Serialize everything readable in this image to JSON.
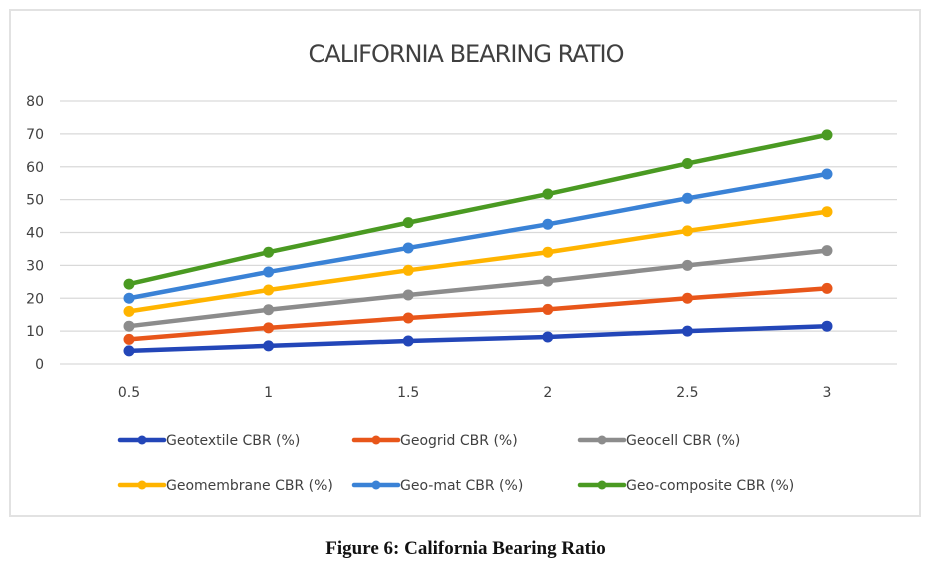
{
  "figure_caption": "Figure 6: California Bearing Ratio",
  "chart_data": {
    "type": "line",
    "title": "CALIFORNIA BEARING RATIO",
    "xlabel": "",
    "ylabel": "",
    "x": [
      0.5,
      1,
      1.5,
      2,
      2.5,
      3
    ],
    "x_tick_labels": [
      "0.5",
      "1",
      "1.5",
      "2",
      "2.5",
      "3"
    ],
    "ylim": [
      0,
      80
    ],
    "y_ticks": [
      0,
      10,
      20,
      30,
      40,
      50,
      60,
      70,
      80
    ],
    "grid": true,
    "legend_position": "bottom",
    "markers": true,
    "series": [
      {
        "name": "Geotextile CBR (%)",
        "color": "#2346b8",
        "values": [
          4,
          5.5,
          7,
          8.2,
          10,
          11.5
        ]
      },
      {
        "name": "Geogrid CBR (%)",
        "color": "#e8561a",
        "values": [
          7.5,
          11,
          14,
          16.6,
          20,
          23
        ]
      },
      {
        "name": "Geocell CBR (%)",
        "color": "#8c8c8c",
        "values": [
          11.5,
          16.5,
          21,
          25.2,
          30,
          34.5
        ]
      },
      {
        "name": "Geomembrane CBR (%)",
        "color": "#ffb400",
        "values": [
          16,
          22.5,
          28.5,
          34,
          40.5,
          46.3
        ]
      },
      {
        "name": "Geo-mat CBR (%)",
        "color": "#3a82d6",
        "values": [
          20,
          28,
          35.3,
          42.5,
          50.4,
          57.8
        ]
      },
      {
        "name": "Geo-composite CBR (%)",
        "color": "#4a9a22",
        "values": [
          24.3,
          34,
          43,
          51.7,
          61,
          69.7
        ]
      }
    ]
  }
}
